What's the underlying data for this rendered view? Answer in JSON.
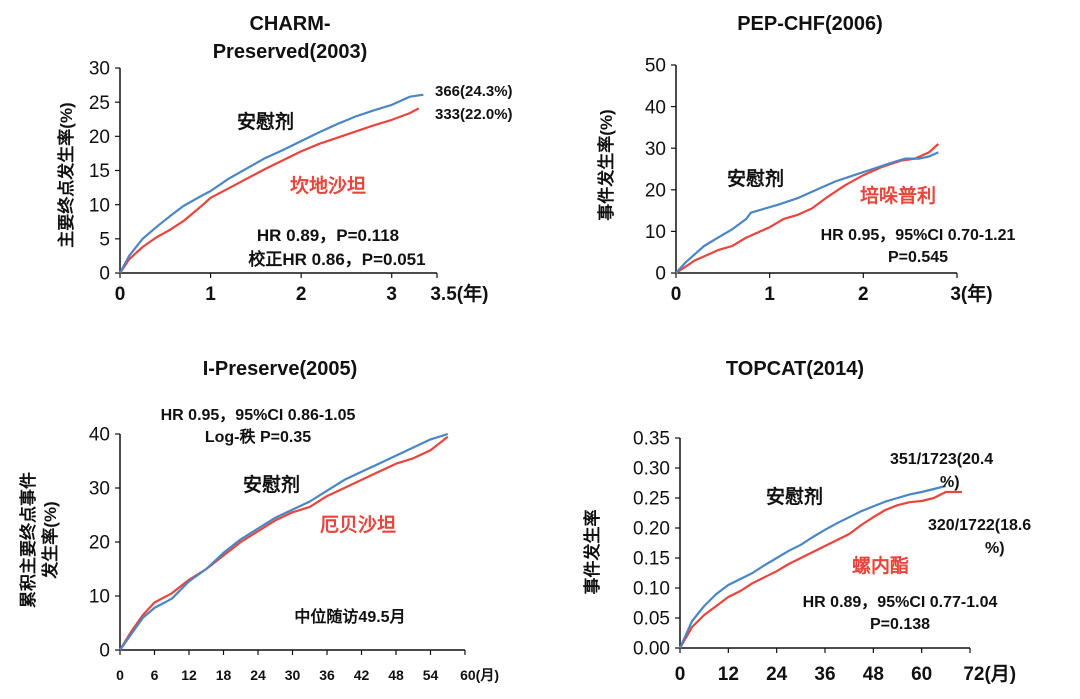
{
  "colors": {
    "placebo": "#4a86c5",
    "treatment": "#e8453c",
    "text": "#111111",
    "axis": "#111111",
    "red_text": "#e8453c"
  },
  "chart_data": [
    {
      "id": "charm",
      "type": "line",
      "title": [
        "CHARM-",
        "Preserved(2003)"
      ],
      "ylabel": "主要终点发生率(%)",
      "ylim": [
        0,
        30
      ],
      "yticks": [
        0,
        5,
        10,
        15,
        20,
        25,
        30
      ],
      "ytick_labels": [
        "0",
        "5",
        "10",
        "15",
        "20",
        "25",
        "30"
      ],
      "xlim": [
        0,
        3.5
      ],
      "xticks": [
        0,
        1,
        2,
        3,
        3.5
      ],
      "xtick_labels": [
        "0",
        "1",
        "2",
        "3",
        "3.5(年)"
      ],
      "series": [
        {
          "name": "安慰剂",
          "role": "placebo",
          "x": [
            0,
            0.1,
            0.25,
            0.4,
            0.55,
            0.7,
            0.9,
            1.0,
            1.2,
            1.4,
            1.6,
            1.8,
            2.0,
            2.2,
            2.4,
            2.6,
            2.8,
            3.0,
            3.2,
            3.35
          ],
          "y": [
            0,
            2.5,
            5.0,
            6.7,
            8.3,
            9.8,
            11.3,
            12.0,
            13.8,
            15.3,
            16.8,
            18.0,
            19.3,
            20.6,
            21.8,
            22.9,
            23.8,
            24.6,
            25.8,
            26.1
          ]
        },
        {
          "name": "坎地沙坦",
          "role": "treatment",
          "x": [
            0,
            0.1,
            0.25,
            0.4,
            0.55,
            0.7,
            0.9,
            1.0,
            1.2,
            1.4,
            1.6,
            1.8,
            2.0,
            2.2,
            2.4,
            2.6,
            2.8,
            3.0,
            3.2,
            3.3
          ],
          "y": [
            0,
            2.0,
            3.8,
            5.2,
            6.3,
            7.6,
            9.8,
            11.0,
            12.4,
            13.8,
            15.2,
            16.5,
            17.8,
            18.9,
            19.8,
            20.7,
            21.6,
            22.4,
            23.4,
            24.1
          ]
        }
      ],
      "end_labels": [
        "366(24.3%)",
        "333(22.0%)"
      ],
      "annotations": [
        "HR 0.89，P=0.118",
        "校正HR 0.86，P=0.051"
      ]
    },
    {
      "id": "pep",
      "type": "line",
      "title": [
        "PEP-CHF(2006)"
      ],
      "ylabel": "事件发生率(%)",
      "ylim": [
        0,
        50
      ],
      "yticks": [
        0,
        10,
        20,
        30,
        40,
        50
      ],
      "ytick_labels": [
        "0",
        "10",
        "20",
        "30",
        "40",
        "50"
      ],
      "xlim": [
        0,
        3
      ],
      "xticks": [
        0,
        1,
        2,
        3
      ],
      "xtick_labels": [
        "0",
        "1",
        "2",
        "3(年)"
      ],
      "series": [
        {
          "name": "安慰剂",
          "role": "placebo",
          "x": [
            0,
            0.1,
            0.2,
            0.3,
            0.45,
            0.6,
            0.75,
            0.8,
            0.95,
            1.1,
            1.3,
            1.5,
            1.7,
            1.9,
            2.1,
            2.3,
            2.45,
            2.6,
            2.7,
            2.8
          ],
          "y": [
            0,
            2.5,
            4.5,
            6.5,
            8.5,
            10.5,
            13.0,
            14.5,
            15.5,
            16.5,
            18.0,
            20.0,
            22.0,
            23.5,
            25.0,
            26.5,
            27.5,
            27.5,
            28.0,
            29.0
          ]
        },
        {
          "name": "培哚普利",
          "role": "treatment",
          "x": [
            0,
            0.1,
            0.2,
            0.3,
            0.45,
            0.6,
            0.75,
            0.9,
            1.0,
            1.15,
            1.3,
            1.45,
            1.6,
            1.8,
            2.0,
            2.2,
            2.4,
            2.55,
            2.7,
            2.8
          ],
          "y": [
            0,
            1.5,
            3.0,
            4.0,
            5.5,
            6.5,
            8.5,
            10.0,
            11.0,
            13.0,
            14.0,
            15.5,
            18.0,
            21.0,
            23.5,
            25.5,
            27.0,
            27.5,
            29.0,
            31.0
          ]
        }
      ],
      "annotations": [
        "HR 0.95，95%CI 0.70-1.21",
        "P=0.545"
      ]
    },
    {
      "id": "ipreserve",
      "type": "line",
      "title": [
        "I-Preserve(2005)"
      ],
      "ylabel": [
        "累积主要终点事件",
        "发生率(%)"
      ],
      "ylim": [
        0,
        40
      ],
      "yticks": [
        0,
        10,
        20,
        30,
        40
      ],
      "ytick_labels": [
        "0",
        "10",
        "20",
        "30",
        "40"
      ],
      "xlim": [
        0,
        60
      ],
      "xticks": [
        0,
        6,
        12,
        18,
        24,
        30,
        36,
        42,
        48,
        54,
        60
      ],
      "xtick_labels": [
        "0",
        "6",
        "12",
        "18",
        "24",
        "30",
        "36",
        "42",
        "48",
        "54",
        "60(月)"
      ],
      "series": [
        {
          "name": "安慰剂",
          "role": "placebo",
          "x": [
            0,
            2,
            4,
            6,
            9,
            12,
            15,
            18,
            21,
            24,
            27,
            30,
            33,
            36,
            39,
            42,
            45,
            48,
            51,
            54,
            57
          ],
          "y": [
            0,
            3.0,
            6.0,
            7.8,
            9.5,
            12.7,
            15.0,
            18.0,
            20.5,
            22.5,
            24.5,
            26.0,
            27.5,
            29.5,
            31.5,
            33.0,
            34.5,
            36.0,
            37.5,
            39.0,
            40.0
          ]
        },
        {
          "name": "厄贝沙坦",
          "role": "treatment",
          "x": [
            0,
            2,
            4,
            6,
            9,
            12,
            15,
            18,
            21,
            24,
            27,
            30,
            33,
            36,
            39,
            42,
            45,
            48,
            51,
            54,
            57
          ],
          "y": [
            0,
            3.5,
            6.5,
            8.8,
            10.5,
            13.0,
            15.0,
            17.5,
            20.0,
            22.0,
            24.0,
            25.5,
            26.5,
            28.5,
            30.0,
            31.5,
            33.0,
            34.5,
            35.5,
            37.0,
            39.5
          ]
        }
      ],
      "annotations": [
        "HR 0.95，95%CI 0.86-1.05",
        "Log-秩 P=0.35",
        "中位随访49.5月"
      ]
    },
    {
      "id": "topcat",
      "type": "line",
      "title": [
        "TOPCAT(2014)"
      ],
      "ylabel": "事件发生率",
      "ylim": [
        0,
        0.35
      ],
      "yticks": [
        0,
        0.05,
        0.1,
        0.15,
        0.2,
        0.25,
        0.3,
        0.35
      ],
      "ytick_labels": [
        "0.00",
        "0.05",
        "0.10",
        "0.15",
        "0.20",
        "0.25",
        "0.30",
        "0.35"
      ],
      "xlim": [
        0,
        72
      ],
      "xticks": [
        0,
        12,
        24,
        36,
        48,
        60,
        72
      ],
      "xtick_labels": [
        "0",
        "12",
        "24",
        "36",
        "48",
        "60",
        "72(月)"
      ],
      "series": [
        {
          "name": "安慰剂",
          "role": "placebo",
          "x": [
            0,
            3,
            6,
            9,
            12,
            15,
            18,
            21,
            24,
            27,
            30,
            33,
            36,
            39,
            42,
            45,
            48,
            51,
            54,
            57,
            60,
            63,
            66
          ],
          "y": [
            0,
            0.045,
            0.07,
            0.09,
            0.105,
            0.115,
            0.125,
            0.138,
            0.15,
            0.162,
            0.172,
            0.185,
            0.197,
            0.208,
            0.218,
            0.228,
            0.236,
            0.244,
            0.25,
            0.256,
            0.26,
            0.265,
            0.27
          ]
        },
        {
          "name": "螺内酯",
          "role": "treatment",
          "x": [
            0,
            3,
            6,
            9,
            12,
            15,
            18,
            21,
            24,
            27,
            30,
            33,
            36,
            39,
            42,
            45,
            48,
            51,
            54,
            57,
            60,
            63,
            66,
            70
          ],
          "y": [
            0,
            0.035,
            0.055,
            0.07,
            0.085,
            0.095,
            0.108,
            0.118,
            0.128,
            0.14,
            0.15,
            0.16,
            0.17,
            0.18,
            0.19,
            0.205,
            0.218,
            0.23,
            0.238,
            0.243,
            0.245,
            0.25,
            0.26,
            0.26
          ]
        }
      ],
      "end_labels": [
        [
          "351/1723(20.4",
          "%)"
        ],
        [
          "320/1722(18.6",
          "%)"
        ]
      ],
      "annotations": [
        "HR 0.89，95%CI 0.77-1.04",
        "P=0.138"
      ]
    }
  ]
}
